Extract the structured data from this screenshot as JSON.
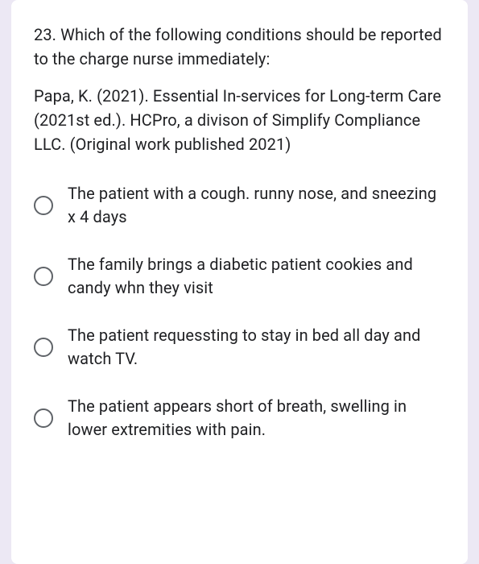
{
  "colors": {
    "page_bg": "#ece8f4",
    "card_bg": "#ffffff",
    "text": "#202124",
    "radio_border": "#5f6368"
  },
  "typography": {
    "font_family": "Roboto, Arial, sans-serif",
    "question_fontsize": 20,
    "option_fontsize": 20,
    "line_height": 1.5
  },
  "question": {
    "number_and_text": "23.  Which of the following conditions should be reported to the charge nurse immediately:",
    "citation": "Papa, K. (2021). Essential In-services for Long-term Care (2021st ed.). HCPro, a divison of Simplify Compliance LLC. (Original work published 2021)"
  },
  "options": [
    {
      "label": "The patient with a cough. runny nose, and sneezing x 4 days",
      "selected": false
    },
    {
      "label": "The family brings a diabetic patient cookies and candy whn they visit",
      "selected": false
    },
    {
      "label": "The patient requessting to stay in bed all day and watch TV.",
      "selected": false
    },
    {
      "label": "The patient appears short of breath, swelling in lower extremities with pain.",
      "selected": false
    }
  ]
}
